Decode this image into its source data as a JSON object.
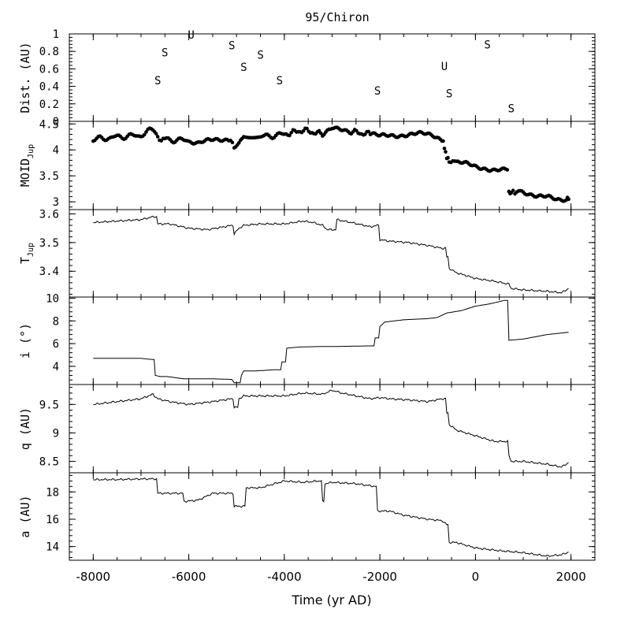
{
  "chart_data": {
    "type": "line",
    "title": "95/Chiron",
    "xlabel": "Time (yr AD)",
    "xlim": [
      -8500,
      2500
    ],
    "xticks": [
      -8000,
      -6000,
      -4000,
      -2000,
      0,
      2000
    ],
    "grid": false,
    "panels": [
      {
        "name": "dist",
        "ylabel": "Dist. (AU)",
        "type": "annotation",
        "ylim": [
          0,
          1
        ],
        "yticks": [
          0,
          0.2,
          0.4,
          0.6,
          0.8,
          1
        ],
        "events": [
          {
            "x": -6650,
            "y": 0.47,
            "label": "S"
          },
          {
            "x": -6500,
            "y": 0.79,
            "label": "S"
          },
          {
            "x": -5950,
            "y": 0.99,
            "label": "U"
          },
          {
            "x": -5100,
            "y": 0.87,
            "label": "S"
          },
          {
            "x": -4850,
            "y": 0.62,
            "label": "S"
          },
          {
            "x": -4500,
            "y": 0.76,
            "label": "S"
          },
          {
            "x": -4100,
            "y": 0.47,
            "label": "S"
          },
          {
            "x": -2050,
            "y": 0.35,
            "label": "S"
          },
          {
            "x": -650,
            "y": 0.63,
            "label": "U"
          },
          {
            "x": -550,
            "y": 0.32,
            "label": "S"
          },
          {
            "x": 250,
            "y": 0.88,
            "label": "S"
          },
          {
            "x": 750,
            "y": 0.15,
            "label": "S"
          }
        ]
      },
      {
        "name": "moid",
        "ylabel": "MOID",
        "ylabel_sub": "Jup",
        "type": "scatter",
        "ylim": [
          2.85,
          4.55
        ],
        "yticks": [
          3,
          3.5,
          4,
          4.5
        ],
        "x": [
          -8000,
          -7500,
          -7000,
          -6750,
          -6650,
          -6500,
          -6000,
          -5800,
          -5500,
          -5200,
          -5050,
          -4950,
          -4850,
          -4500,
          -4000,
          -3600,
          -3200,
          -3000,
          -2900,
          -2600,
          -2200,
          -2000,
          -1800,
          -1500,
          -1200,
          -900,
          -700,
          -650,
          -600,
          -550,
          -400,
          -200,
          0,
          200,
          400,
          600,
          700,
          750,
          900,
          1100,
          1300,
          1500,
          1700,
          1900,
          1950
        ],
        "y": [
          4.2,
          4.25,
          4.28,
          4.4,
          4.22,
          4.2,
          4.18,
          4.12,
          4.18,
          4.22,
          4.08,
          4.12,
          4.25,
          4.25,
          4.3,
          4.38,
          4.3,
          4.4,
          4.38,
          4.35,
          4.3,
          4.25,
          4.28,
          4.3,
          4.3,
          4.28,
          4.22,
          4.05,
          3.85,
          3.8,
          3.75,
          3.72,
          3.68,
          3.66,
          3.62,
          3.6,
          3.18,
          3.16,
          3.22,
          3.18,
          3.12,
          3.08,
          3.02,
          3.05,
          3.05
        ]
      },
      {
        "name": "tjup",
        "ylabel": "T",
        "ylabel_sub": "Jup",
        "type": "line",
        "ylim": [
          3.31,
          3.615
        ],
        "yticks": [
          3.4,
          3.5,
          3.6
        ],
        "x": [
          -8000,
          -7500,
          -7000,
          -6750,
          -6650,
          -6400,
          -6000,
          -5600,
          -5100,
          -5050,
          -4950,
          -4850,
          -4500,
          -4000,
          -3600,
          -3400,
          -3200,
          -3100,
          -2900,
          -2600,
          -2200,
          -2050,
          -2000,
          -1800,
          -1400,
          -1000,
          -700,
          -600,
          -550,
          -400,
          0,
          400,
          700,
          750,
          1000,
          1500,
          1800,
          1950
        ],
        "y": [
          3.57,
          3.575,
          3.58,
          3.59,
          3.565,
          3.565,
          3.55,
          3.545,
          3.56,
          3.53,
          3.55,
          3.56,
          3.565,
          3.565,
          3.575,
          3.57,
          3.56,
          3.545,
          3.58,
          3.57,
          3.555,
          3.56,
          3.51,
          3.505,
          3.5,
          3.49,
          3.48,
          3.45,
          3.41,
          3.395,
          3.375,
          3.365,
          3.355,
          3.34,
          3.335,
          3.33,
          3.325,
          3.34
        ]
      },
      {
        "name": "incl",
        "ylabel": "i (°)",
        "type": "line",
        "ylim": [
          2.4,
          10.1
        ],
        "yticks": [
          4,
          6,
          8,
          10
        ],
        "x": [
          -8000,
          -7000,
          -6750,
          -6700,
          -6600,
          -6450,
          -6100,
          -5500,
          -5100,
          -5050,
          -5000,
          -4900,
          -4850,
          -4600,
          -4200,
          -4050,
          -3950,
          -3700,
          -3200,
          -2900,
          -2250,
          -2100,
          -2000,
          -1900,
          -1500,
          -1000,
          -800,
          -600,
          -300,
          0,
          300,
          600,
          700,
          1000,
          1500,
          1950
        ],
        "y": [
          4.7,
          4.7,
          4.6,
          3.2,
          3.1,
          3.1,
          2.9,
          2.9,
          2.85,
          2.55,
          2.55,
          3.2,
          3.6,
          3.6,
          3.7,
          4.4,
          5.6,
          5.7,
          5.75,
          5.75,
          5.8,
          6.5,
          7.5,
          7.9,
          8.1,
          8.2,
          8.3,
          8.7,
          8.9,
          9.3,
          9.5,
          9.8,
          6.3,
          6.4,
          6.8,
          7.0
        ]
      },
      {
        "name": "q",
        "ylabel": "q (AU)",
        "type": "line",
        "ylim": [
          8.3,
          9.85
        ],
        "yticks": [
          8.5,
          9,
          9.5
        ],
        "x": [
          -8000,
          -7500,
          -7000,
          -6750,
          -6650,
          -6400,
          -6000,
          -5500,
          -5100,
          -5050,
          -4950,
          -4850,
          -4500,
          -4000,
          -3600,
          -3200,
          -3000,
          -2800,
          -2500,
          -2200,
          -2000,
          -1800,
          -1400,
          -1000,
          -700,
          -600,
          -550,
          -400,
          0,
          400,
          650,
          700,
          750,
          1000,
          1500,
          1800,
          1950
        ],
        "y": [
          9.5,
          9.55,
          9.6,
          9.68,
          9.6,
          9.55,
          9.5,
          9.55,
          9.6,
          9.45,
          9.6,
          9.65,
          9.65,
          9.65,
          9.7,
          9.68,
          9.75,
          9.7,
          9.65,
          9.6,
          9.62,
          9.6,
          9.58,
          9.55,
          9.6,
          9.35,
          9.15,
          9.05,
          8.95,
          8.85,
          8.85,
          8.6,
          8.5,
          8.5,
          8.45,
          8.4,
          8.48
        ]
      },
      {
        "name": "a",
        "ylabel": "a (AU)",
        "type": "line",
        "ylim": [
          13.0,
          19.4
        ],
        "yticks": [
          14,
          16,
          18
        ],
        "x": [
          -8000,
          -7500,
          -7000,
          -6750,
          -6650,
          -6300,
          -6100,
          -5800,
          -5500,
          -5100,
          -5050,
          -4850,
          -4800,
          -4500,
          -4000,
          -3600,
          -3300,
          -3200,
          -3150,
          -3000,
          -2500,
          -2100,
          -2050,
          -1800,
          -1500,
          -1000,
          -700,
          -600,
          -550,
          -400,
          0,
          500,
          1000,
          1500,
          1800,
          1950
        ],
        "y": [
          18.9,
          18.9,
          18.95,
          18.95,
          17.9,
          17.9,
          17.3,
          17.4,
          17.9,
          17.9,
          16.95,
          16.95,
          18.3,
          18.3,
          18.8,
          18.7,
          18.8,
          17.3,
          18.6,
          18.7,
          18.6,
          18.4,
          16.6,
          16.6,
          16.3,
          16.0,
          15.9,
          15.6,
          14.3,
          14.3,
          13.9,
          13.7,
          13.55,
          13.3,
          13.4,
          13.6
        ]
      }
    ]
  }
}
